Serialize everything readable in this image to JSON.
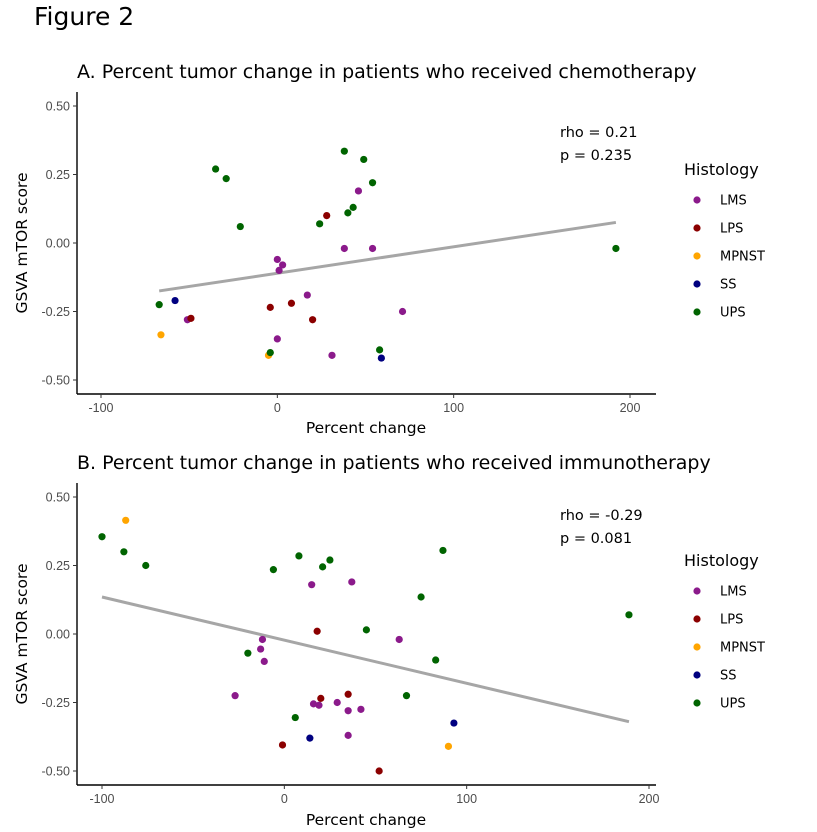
{
  "figure_title": "Figure 2",
  "chart_data": [
    {
      "type": "scatter",
      "title": "A. Percent tumor change in patients who received chemotherapy",
      "xlabel": "Percent change",
      "ylabel": "GSVA mTOR score",
      "xlim": [
        -113,
        215
      ],
      "ylim": [
        -0.55,
        0.55
      ],
      "xticks": [
        -100,
        0,
        100,
        200
      ],
      "yticks": [
        -0.5,
        -0.25,
        0.0,
        0.25,
        0.5
      ],
      "xtick_labels": [
        "-100",
        "0",
        "100",
        "200"
      ],
      "ytick_labels": [
        "-0.50",
        "-0.25",
        "0.00",
        "0.25",
        "0.50"
      ],
      "annotation": [
        "rho = 0.21",
        "p = 0.235"
      ],
      "legend": {
        "title": "Histology",
        "placement": "right"
      },
      "grid": false,
      "trendline": {
        "x": [
          -67,
          192
        ],
        "y": [
          -0.175,
          0.075
        ],
        "color": "#a6a6a6"
      },
      "series": [
        {
          "name": "LMS",
          "color": "#8b1a8b",
          "points": [
            [
              -51,
              -0.28
            ],
            [
              0,
              -0.06
            ],
            [
              1,
              -0.1
            ],
            [
              3,
              -0.08
            ],
            [
              0,
              -0.35
            ],
            [
              17,
              -0.19
            ],
            [
              31,
              -0.41
            ],
            [
              38,
              -0.02
            ],
            [
              46,
              0.19
            ],
            [
              54,
              -0.02
            ],
            [
              71,
              -0.25
            ]
          ]
        },
        {
          "name": "LPS",
          "color": "#8b0000",
          "points": [
            [
              -49,
              -0.275
            ],
            [
              -4,
              -0.235
            ],
            [
              8,
              -0.22
            ],
            [
              20,
              -0.28
            ],
            [
              28,
              0.1
            ]
          ]
        },
        {
          "name": "MPNST",
          "color": "#ffa500",
          "points": [
            [
              -66,
              -0.335
            ],
            [
              -5,
              -0.41
            ]
          ]
        },
        {
          "name": "SS",
          "color": "#000080",
          "points": [
            [
              -58,
              -0.21
            ],
            [
              59,
              -0.42
            ]
          ]
        },
        {
          "name": "UPS",
          "color": "#006400",
          "points": [
            [
              -67,
              -0.225
            ],
            [
              -35,
              0.27
            ],
            [
              -29,
              0.235
            ],
            [
              -21,
              0.06
            ],
            [
              -4,
              -0.4
            ],
            [
              24,
              0.07
            ],
            [
              38,
              0.335
            ],
            [
              40,
              0.11
            ],
            [
              43,
              0.13
            ],
            [
              49,
              0.305
            ],
            [
              54,
              0.22
            ],
            [
              58,
              -0.39
            ],
            [
              192,
              -0.02
            ]
          ]
        }
      ]
    },
    {
      "type": "scatter",
      "title": "B. Percent tumor change in patients who received immunotherapy",
      "xlabel": "Percent change",
      "ylabel": "GSVA mTOR score",
      "xlim": [
        -116,
        205
      ],
      "ylim": [
        -0.55,
        0.55
      ],
      "xticks": [
        -100,
        0,
        100,
        200
      ],
      "yticks": [
        -0.5,
        -0.25,
        0.0,
        0.25,
        0.5
      ],
      "xtick_labels": [
        "-100",
        "0",
        "100",
        "200"
      ],
      "ytick_labels": [
        "-0.50",
        "-0.25",
        "0.00",
        "0.25",
        "0.50"
      ],
      "annotation": [
        "rho = -0.29",
        "p = 0.081"
      ],
      "legend": {
        "title": "Histology",
        "placement": "right"
      },
      "grid": false,
      "trendline": {
        "x": [
          -100,
          189
        ],
        "y": [
          0.135,
          -0.32
        ],
        "color": "#a6a6a6"
      },
      "series": [
        {
          "name": "LMS",
          "color": "#8b1a8b",
          "points": [
            [
              -27,
              -0.225
            ],
            [
              -13,
              -0.055
            ],
            [
              -12,
              -0.02
            ],
            [
              -11,
              -0.1
            ],
            [
              15,
              0.18
            ],
            [
              16,
              -0.255
            ],
            [
              19,
              -0.26
            ],
            [
              29,
              -0.25
            ],
            [
              35,
              -0.28
            ],
            [
              35,
              -0.37
            ],
            [
              37,
              0.19
            ],
            [
              42,
              -0.275
            ],
            [
              63,
              -0.02
            ]
          ]
        },
        {
          "name": "LPS",
          "color": "#8b0000",
          "points": [
            [
              -1,
              -0.405
            ],
            [
              18,
              0.01
            ],
            [
              20,
              -0.235
            ],
            [
              35,
              -0.22
            ],
            [
              52,
              -0.5
            ]
          ]
        },
        {
          "name": "MPNST",
          "color": "#ffa500",
          "points": [
            [
              -87,
              0.415
            ],
            [
              90,
              -0.41
            ]
          ]
        },
        {
          "name": "SS",
          "color": "#000080",
          "points": [
            [
              14,
              -0.38
            ],
            [
              93,
              -0.325
            ]
          ]
        },
        {
          "name": "UPS",
          "color": "#006400",
          "points": [
            [
              -100,
              0.355
            ],
            [
              -88,
              0.3
            ],
            [
              -76,
              0.25
            ],
            [
              -20,
              -0.07
            ],
            [
              -6,
              0.235
            ],
            [
              6,
              -0.305
            ],
            [
              8,
              0.285
            ],
            [
              21,
              0.245
            ],
            [
              25,
              0.27
            ],
            [
              45,
              0.015
            ],
            [
              67,
              -0.225
            ],
            [
              75,
              0.135
            ],
            [
              83,
              -0.095
            ],
            [
              87,
              0.305
            ],
            [
              189,
              0.07
            ]
          ]
        }
      ]
    }
  ]
}
